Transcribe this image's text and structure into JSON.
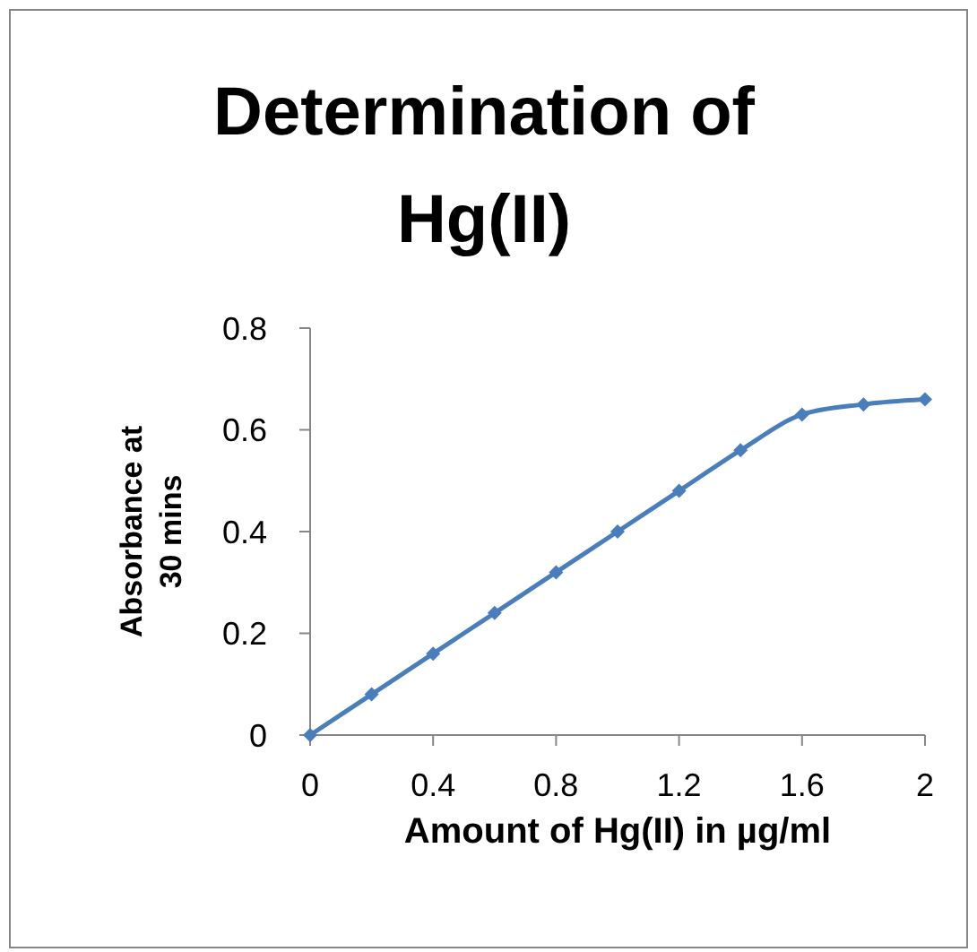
{
  "chart_data": {
    "type": "line",
    "title": "Determination of Hg(II)",
    "xlabel": "Amount of Hg(II) in µg/ml",
    "ylabel": "Absorbance at 30 mins",
    "x": [
      0,
      0.2,
      0.4,
      0.6,
      0.8,
      1,
      1.2,
      1.4,
      1.6,
      1.8,
      2
    ],
    "series": [
      {
        "color": "#4a7ebb",
        "values": [
          0,
          0.08,
          0.16,
          0.24,
          0.32,
          0.4,
          0.48,
          0.56,
          0.63,
          0.65,
          0.66
        ]
      }
    ],
    "xlim": [
      0,
      2
    ],
    "xticks": [
      0,
      0.4,
      0.8,
      1.2,
      1.6,
      2
    ],
    "ylim": [
      0,
      0.8
    ],
    "yticks": [
      0,
      0.2,
      0.4,
      0.6,
      0.8
    ],
    "marker": "diamond",
    "line_style": "solid"
  }
}
